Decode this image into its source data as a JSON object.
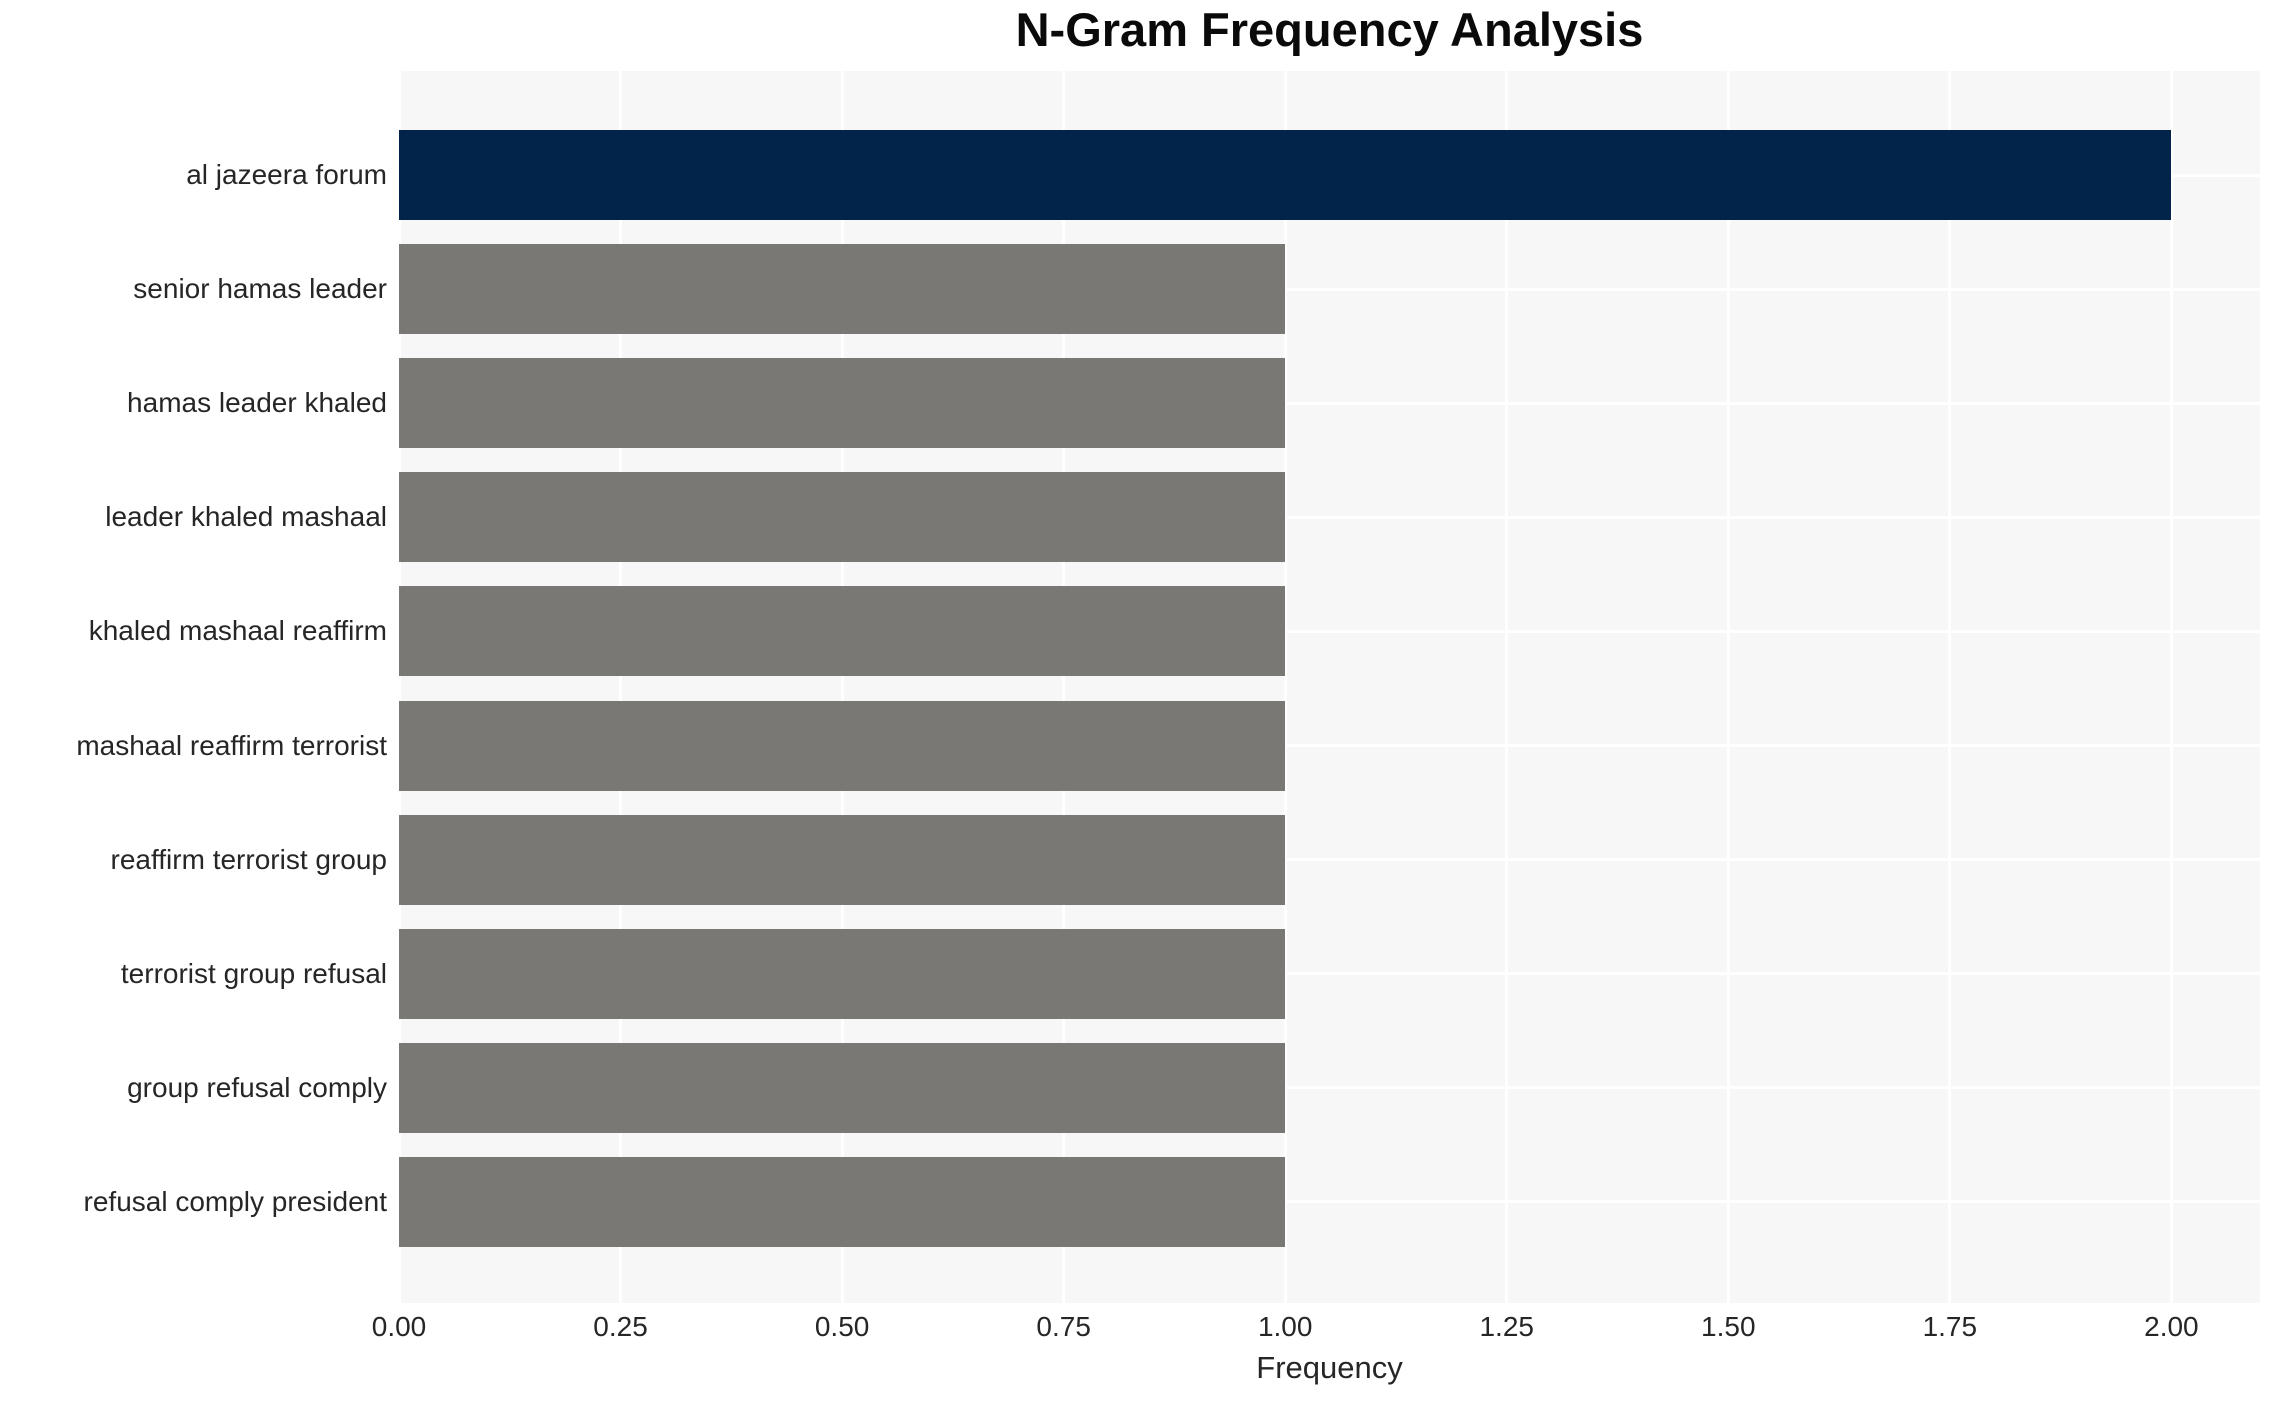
{
  "chart_data": {
    "type": "bar",
    "orientation": "horizontal",
    "title": "N-Gram Frequency Analysis",
    "xlabel": "Frequency",
    "ylabel": "",
    "categories": [
      "al jazeera forum",
      "senior hamas leader",
      "hamas leader khaled",
      "leader khaled mashaal",
      "khaled mashaal reaffirm",
      "mashaal reaffirm terrorist",
      "reaffirm terrorist group",
      "terrorist group refusal",
      "group refusal comply",
      "refusal comply president"
    ],
    "values": [
      2,
      1,
      1,
      1,
      1,
      1,
      1,
      1,
      1,
      1
    ],
    "bar_colors": [
      "#02234a",
      "#7a7874",
      "#7a7874",
      "#7a7874",
      "#7a7874",
      "#7a7874",
      "#7a7874",
      "#7a7874",
      "#7a7874",
      "#7a7874"
    ],
    "xlim": [
      0,
      2.1
    ],
    "xticks": [
      0.0,
      0.25,
      0.5,
      0.75,
      1.0,
      1.25,
      1.5,
      1.75,
      2.0
    ],
    "xtick_labels": [
      "0.00",
      "0.25",
      "0.50",
      "0.75",
      "1.00",
      "1.25",
      "1.50",
      "1.75",
      "2.00"
    ],
    "grid": true,
    "legend": false,
    "colors": {
      "highlight_bar": "#02234a",
      "default_bar": "#7a7874",
      "plot_background": "#f7f7f7",
      "gridline": "#ffffff",
      "tick_text": "#262626",
      "title_text": "#0a0a0a"
    }
  }
}
